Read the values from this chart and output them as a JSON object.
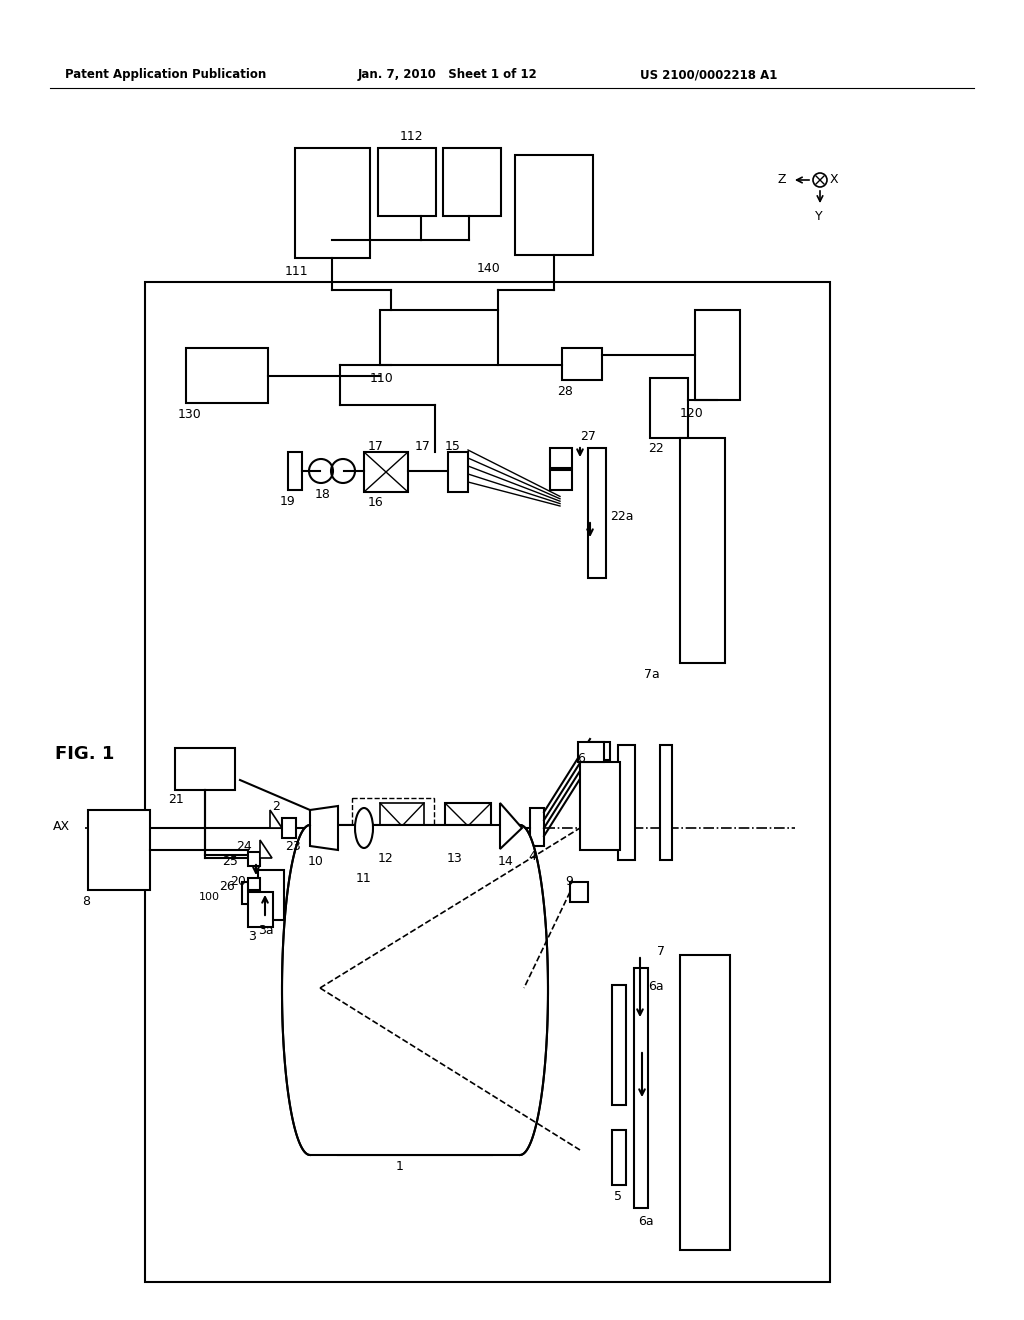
{
  "background_color": "#ffffff",
  "fig_width": 10.24,
  "fig_height": 13.2,
  "header_left": "Patent Application Publication",
  "header_center": "Jan. 7, 2010   Sheet 1 of 12",
  "header_right": "US 2100/0002218 A1",
  "fig_label": "FIG. 1"
}
